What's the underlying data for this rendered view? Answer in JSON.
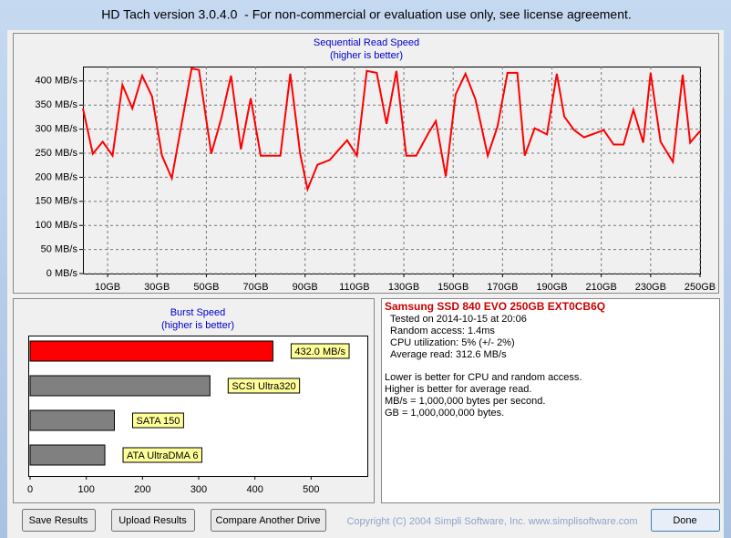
{
  "window": {
    "title": "HD Tach version 3.0.4.0  - For non-commercial or evaluation use only, see license agreement."
  },
  "chart_data": [
    {
      "type": "line",
      "title": "Sequential Read Speed",
      "subtitle": "(higher is better)",
      "x": [
        0,
        4,
        8,
        12,
        16,
        20,
        24,
        28,
        32,
        36,
        44,
        47,
        52,
        56,
        60,
        64,
        68,
        72,
        80,
        84,
        88,
        91,
        95,
        100,
        107,
        111,
        115,
        119,
        123,
        127,
        131,
        135,
        140,
        143,
        147,
        151,
        155,
        159,
        164,
        168,
        172,
        176,
        179,
        183,
        188,
        192,
        195,
        199,
        203,
        211,
        215,
        219,
        223,
        227,
        230,
        234,
        239,
        243,
        246,
        250
      ],
      "values": [
        343,
        249,
        274,
        245,
        392,
        343,
        411,
        368,
        245,
        198,
        426,
        423,
        249,
        321,
        411,
        258,
        364,
        245,
        245,
        415,
        249,
        175,
        226,
        236,
        277,
        245,
        421,
        417,
        311,
        421,
        245,
        245,
        292,
        317,
        202,
        372,
        415,
        362,
        245,
        306,
        417,
        417,
        245,
        302,
        289,
        415,
        326,
        298,
        283,
        298,
        268,
        268,
        340,
        272,
        417,
        274,
        232,
        413,
        272,
        296
      ],
      "color": "#ff0000",
      "xlim": [
        0,
        250
      ],
      "ylim": [
        0,
        430
      ],
      "xticks": [
        {
          "value": 10,
          "label": "10GB"
        },
        {
          "value": 30,
          "label": "30GB"
        },
        {
          "value": 50,
          "label": "50GB"
        },
        {
          "value": 70,
          "label": "70GB"
        },
        {
          "value": 90,
          "label": "90GB"
        },
        {
          "value": 110,
          "label": "110GB"
        },
        {
          "value": 130,
          "label": "130GB"
        },
        {
          "value": 150,
          "label": "150GB"
        },
        {
          "value": 170,
          "label": "170GB"
        },
        {
          "value": 190,
          "label": "190GB"
        },
        {
          "value": 210,
          "label": "210GB"
        },
        {
          "value": 230,
          "label": "230GB"
        },
        {
          "value": 250,
          "label": "250GB"
        }
      ],
      "yticks": [
        {
          "value": 0,
          "label": "0 MB/s"
        },
        {
          "value": 50,
          "label": "50 MB/s"
        },
        {
          "value": 100,
          "label": "100 MB/s"
        },
        {
          "value": 150,
          "label": "150 MB/s"
        },
        {
          "value": 200,
          "label": "200 MB/s"
        },
        {
          "value": 250,
          "label": "250 MB/s"
        },
        {
          "value": 300,
          "label": "300 MB/s"
        },
        {
          "value": 350,
          "label": "350 MB/s"
        },
        {
          "value": 400,
          "label": "400 MB/s"
        }
      ],
      "grid": true
    },
    {
      "type": "barh",
      "title": "Burst Speed",
      "subtitle": "(higher is better)",
      "categories": [
        null,
        "SCSI Ultra320",
        "SATA 150",
        "ATA UltraDMA 6"
      ],
      "values": [
        432,
        320,
        150,
        133
      ],
      "value_labels": [
        "432.0 MB/s",
        null,
        null,
        null
      ],
      "colors": [
        "#ff0000",
        "#808080",
        "#808080",
        "#808080"
      ],
      "xlim": [
        0,
        600
      ],
      "xticks": [
        0,
        100,
        200,
        300,
        400,
        500
      ]
    }
  ],
  "drive_info": {
    "name": "Samsung SSD 840 EVO 250GB EXT0CB6Q",
    "lines": [
      "Tested on 2014-10-15 at 20:06",
      "Random access: 1.4ms",
      "CPU utilization: 5% (+/- 2%)",
      "Average read: 312.6 MB/s"
    ],
    "notes": [
      "Lower is better for CPU and random access.",
      "Higher is better for average read.",
      "MB/s = 1,000,000 bytes per second.",
      "GB = 1,000,000,000 bytes."
    ]
  },
  "buttons": [
    "Save Results",
    "Upload Results",
    "Compare Another Drive",
    "Done"
  ],
  "copyright": "Copyright (C) 2004 Simpli Software, Inc. www.simplisoftware.com"
}
